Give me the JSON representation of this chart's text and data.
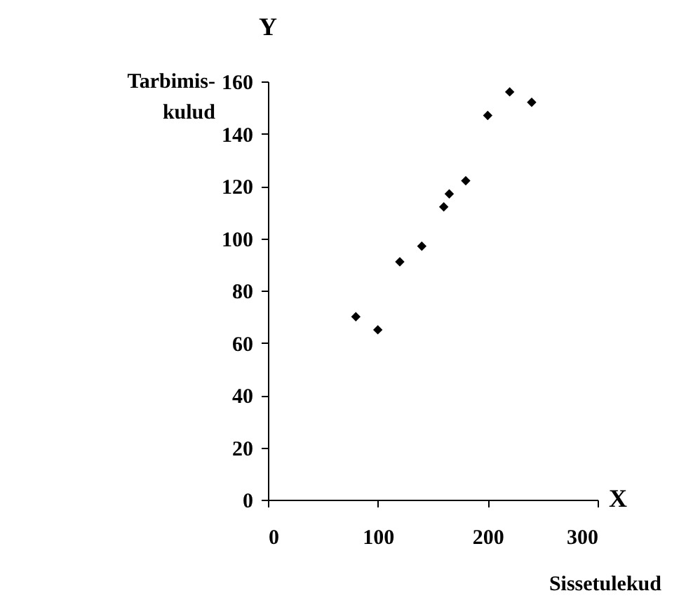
{
  "chart_data": {
    "type": "scatter",
    "xlabel": "Sissetulekud",
    "ylabel": "Tarbimis-\nkulud",
    "annotations": [
      "Y",
      "X"
    ],
    "x": [
      80,
      100,
      120,
      140,
      160,
      165,
      180,
      200,
      220,
      240
    ],
    "series": [
      {
        "color": "#000000",
        "values": [
          70,
          65,
          91,
          97,
          112,
          117,
          122,
          147,
          156,
          152
        ]
      }
    ],
    "xlim": [
      0,
      300
    ],
    "xticks": [
      0,
      100,
      200,
      300
    ],
    "ylim": [
      0,
      160
    ],
    "yticks": [
      0,
      20,
      40,
      60,
      80,
      100,
      120,
      140,
      160
    ],
    "marker": "diamond",
    "grid": false
  }
}
